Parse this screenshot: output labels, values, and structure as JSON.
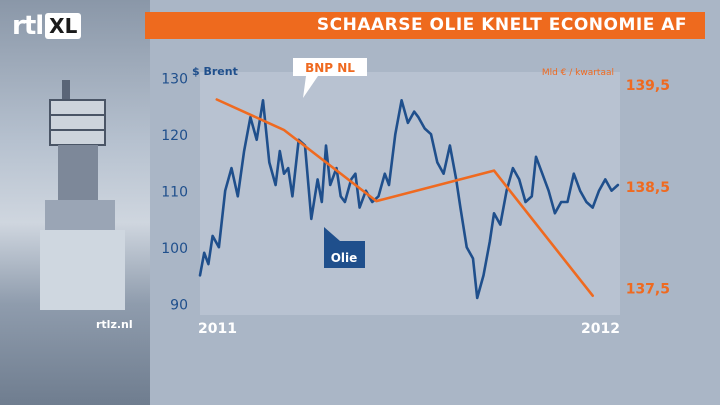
{
  "branding": {
    "logo_left": "rtl",
    "logo_right": "XL",
    "source": "rtlz.nl"
  },
  "headline": "SCHAARSE OLIE KNELT ECONOMIE AF",
  "colors": {
    "oil": "#1f4f8c",
    "bnp": "#ef6a20",
    "headline_bg": "#ee6a1e",
    "plot_bg": "#b8c2d1"
  },
  "chart_data": {
    "type": "line",
    "left_axis": {
      "unit_label": "$ Brent",
      "ticks": [
        130,
        120,
        110,
        100,
        90
      ],
      "range": [
        88,
        131
      ]
    },
    "right_axis": {
      "unit_label": "Mld € / kwartaal",
      "ticks": [
        "139,5",
        "138,5",
        "137,5"
      ],
      "tick_values": [
        139.5,
        138.5,
        137.5
      ],
      "range": [
        137.23,
        139.62
      ]
    },
    "x_axis": {
      "start_label": "2011",
      "end_label": "2012",
      "range": [
        2011.0,
        2012.0
      ]
    },
    "series": [
      {
        "name": "Olie",
        "axis": "left",
        "x": [
          2011.0,
          2011.01,
          2011.02,
          2011.03,
          2011.045,
          2011.06,
          2011.075,
          2011.09,
          2011.105,
          2011.12,
          2011.135,
          2011.15,
          2011.165,
          2011.18,
          2011.19,
          2011.2,
          2011.21,
          2011.22,
          2011.235,
          2011.25,
          2011.265,
          2011.28,
          2011.29,
          2011.3,
          2011.31,
          2011.325,
          2011.335,
          2011.345,
          2011.36,
          2011.37,
          2011.38,
          2011.395,
          2011.41,
          2011.425,
          2011.44,
          2011.45,
          2011.465,
          2011.48,
          2011.495,
          2011.51,
          2011.52,
          2011.535,
          2011.55,
          2011.565,
          2011.58,
          2011.595,
          2011.61,
          2011.62,
          2011.635,
          2011.65,
          2011.66,
          2011.675,
          2011.69,
          2011.7,
          2011.715,
          2011.73,
          2011.745,
          2011.76,
          2011.775,
          2011.79,
          2011.8,
          2011.815,
          2011.83,
          2011.845,
          2011.86,
          2011.875,
          2011.89,
          2011.905,
          2011.92,
          2011.935,
          2011.95,
          2011.965,
          2011.98,
          2011.995
        ],
        "values": [
          95,
          99,
          97,
          102,
          100,
          110,
          114,
          109,
          117,
          123,
          119,
          126,
          115,
          111,
          117,
          113,
          114,
          109,
          119,
          118,
          105,
          112,
          108,
          118,
          111,
          114,
          109,
          108,
          112,
          113,
          107,
          110,
          108,
          109,
          113,
          111,
          120,
          126,
          122,
          124,
          123,
          121,
          120,
          115,
          113,
          118,
          112,
          107,
          100,
          98,
          91,
          95,
          101,
          106,
          104,
          110,
          114,
          112,
          108,
          109,
          116,
          113,
          110,
          106,
          108,
          108,
          113,
          110,
          108,
          107,
          110,
          112,
          110,
          111
        ]
      },
      {
        "name": "BNP NL",
        "axis": "right",
        "x": [
          2011.04,
          2011.2,
          2011.42,
          2011.7,
          2011.935
        ],
        "values": [
          139.35,
          139.05,
          138.35,
          138.65,
          137.42
        ]
      }
    ],
    "annotations": [
      {
        "text": "Olie"
      },
      {
        "text": "BNP NL"
      }
    ]
  }
}
